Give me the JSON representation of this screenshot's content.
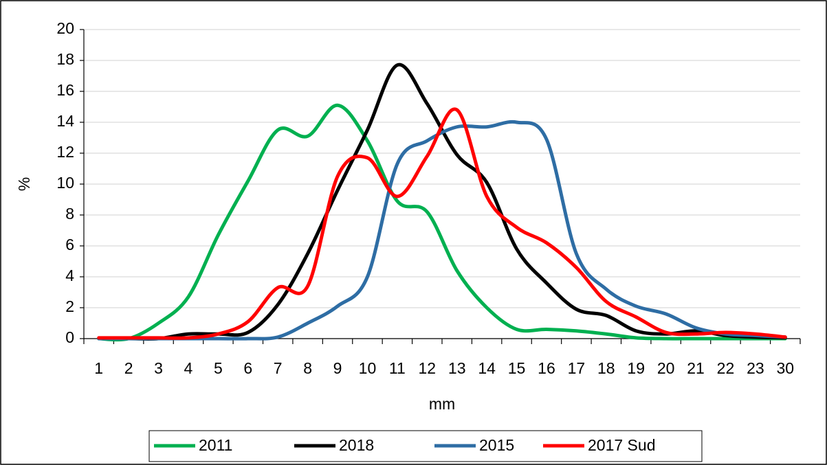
{
  "chart_data": {
    "type": "line",
    "x_label": "mm",
    "y_label": "%",
    "categories": [
      "1",
      "2",
      "3",
      "4",
      "5",
      "6",
      "7",
      "8",
      "9",
      "10",
      "11",
      "12",
      "13",
      "14",
      "15",
      "16",
      "17",
      "18",
      "19",
      "20",
      "21",
      "22",
      "23",
      "30"
    ],
    "series": [
      {
        "name": "2011",
        "color": "#00b050",
        "values": [
          0,
          0,
          1.0,
          2.7,
          6.7,
          10.2,
          13.5,
          13.1,
          15.1,
          12.8,
          8.9,
          8.2,
          4.4,
          2.0,
          0.6,
          0.6,
          0.5,
          0.3,
          0.05,
          0,
          0,
          0,
          0,
          0
        ]
      },
      {
        "name": "2018",
        "color": "#000000",
        "values": [
          0,
          0,
          0,
          0.3,
          0.3,
          0.4,
          2.2,
          5.5,
          9.6,
          13.5,
          17.7,
          15.2,
          11.9,
          10.1,
          5.8,
          3.6,
          1.9,
          1.5,
          0.5,
          0.3,
          0.5,
          0.2,
          0.1,
          0.05
        ]
      },
      {
        "name": "2015",
        "color": "#2e6da4",
        "values": [
          0,
          0,
          0,
          0,
          0,
          0,
          0.1,
          1.0,
          2.1,
          4.0,
          11.3,
          12.8,
          13.7,
          13.7,
          14.0,
          12.9,
          5.5,
          3.2,
          2.1,
          1.6,
          0.7,
          0.3,
          0.2,
          0.1
        ]
      },
      {
        "name": "2017 Sud",
        "color": "#ff0000",
        "values": [
          0.05,
          0.05,
          0.05,
          0.05,
          0.3,
          1.1,
          3.3,
          3.4,
          10.5,
          11.7,
          9.2,
          11.8,
          14.8,
          9.2,
          7.2,
          6.2,
          4.6,
          2.4,
          1.4,
          0.4,
          0.3,
          0.4,
          0.3,
          0.1
        ]
      }
    ],
    "ylim": [
      0,
      20
    ],
    "yticks": [
      0,
      2,
      4,
      6,
      8,
      10,
      12,
      14,
      16,
      18,
      20
    ],
    "grid": true,
    "legend": "bottom"
  }
}
